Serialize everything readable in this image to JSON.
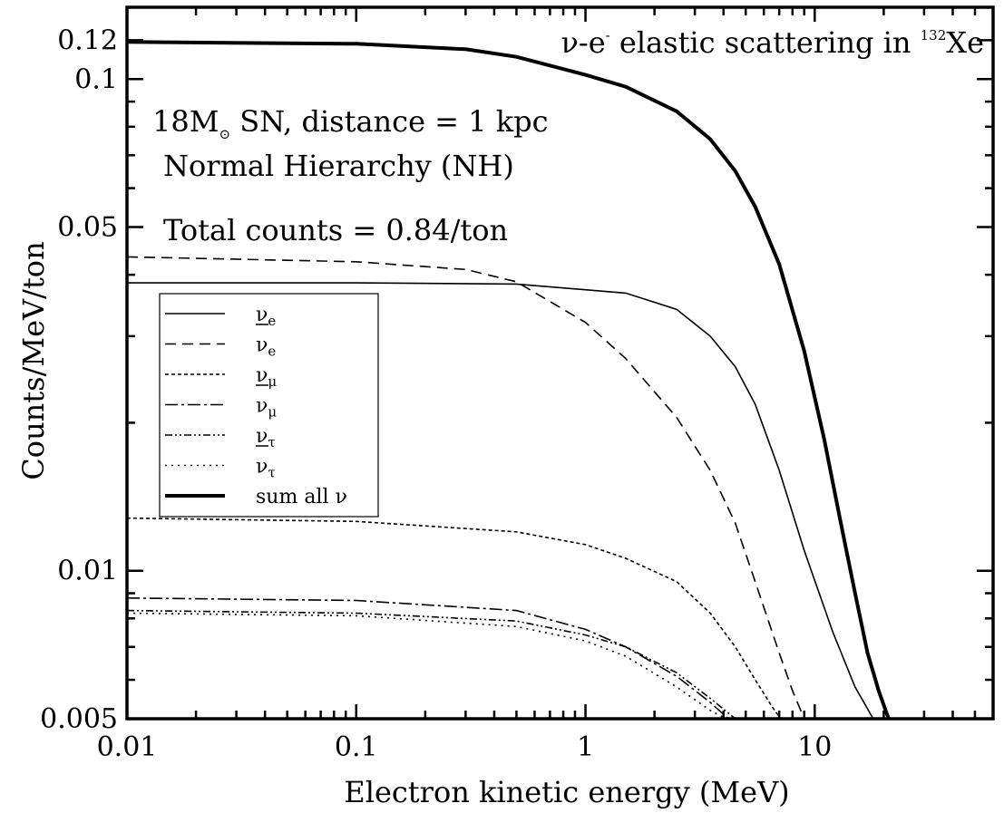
{
  "chart_data": {
    "type": "line",
    "title": "ν-e elastic scattering in Xe",
    "title_parts": {
      "main": "ν-e",
      "superscript_minus": "-",
      "mid": " elastic scattering in ",
      "isotope_mass": "132",
      "element": "Xe"
    },
    "annotations": {
      "line1_prefix": "18M",
      "line1_symbol": "⊙",
      "line1_suffix": " SN, distance = 1 kpc",
      "line2": "Normal Hierarchy (NH)",
      "line3": "Total counts = 0.84/ton"
    },
    "xlabel": "Electron kinetic energy (MeV)",
    "ylabel": "Counts/MeV/ton",
    "x_scale": "log",
    "y_scale": "log",
    "xlim": [
      0.01,
      60
    ],
    "ylim": [
      0.005,
      0.14
    ],
    "xtick_labels": [
      {
        "value": 0.01,
        "label": "0.01"
      },
      {
        "value": 0.1,
        "label": "0.1"
      },
      {
        "value": 1,
        "label": "1"
      },
      {
        "value": 10,
        "label": "10"
      }
    ],
    "ytick_labels": [
      {
        "value": 0.005,
        "label": "0.005"
      },
      {
        "value": 0.01,
        "label": "0.01"
      },
      {
        "value": 0.05,
        "label": "0.05"
      },
      {
        "value": 0.1,
        "label": "0.1"
      },
      {
        "value": 0.12,
        "label": "0.12"
      }
    ],
    "legend_position": "middle-left",
    "grid": false,
    "series": [
      {
        "name": "ν̄e",
        "symbol": "ν",
        "sub": "e",
        "bar": true,
        "dash": "",
        "width": 1.6,
        "x": [
          0.01,
          0.1,
          0.5,
          1.5,
          2.5,
          3.5,
          4.5,
          5.5,
          7,
          9,
          12,
          15,
          18
        ],
        "y": [
          0.0385,
          0.0385,
          0.0383,
          0.0367,
          0.034,
          0.03,
          0.026,
          0.0218,
          0.016,
          0.011,
          0.0075,
          0.0058,
          0.005
        ]
      },
      {
        "name": "νe",
        "symbol": "ν",
        "sub": "e",
        "bar": false,
        "dash": "12,7",
        "width": 1.6,
        "x": [
          0.01,
          0.1,
          0.3,
          0.5,
          1,
          1.5,
          2.5,
          3.5,
          4.5,
          5.5,
          7,
          8,
          9
        ],
        "y": [
          0.0435,
          0.0425,
          0.041,
          0.0387,
          0.032,
          0.027,
          0.0205,
          0.016,
          0.0125,
          0.0095,
          0.0068,
          0.0057,
          0.005
        ]
      },
      {
        "name": "ν̄μ",
        "symbol": "ν",
        "sub": "μ",
        "bar": true,
        "dash": "4,3",
        "width": 1.6,
        "x": [
          0.01,
          0.1,
          0.5,
          1,
          1.5,
          2.5,
          3.5,
          4.5,
          5.5,
          6.5,
          7.1
        ],
        "y": [
          0.0128,
          0.0126,
          0.012,
          0.0113,
          0.0106,
          0.0095,
          0.0082,
          0.007,
          0.006,
          0.0053,
          0.005
        ]
      },
      {
        "name": "νμ",
        "symbol": "ν",
        "sub": "μ",
        "bar": false,
        "dash": "14,4,3,4",
        "width": 1.6,
        "x": [
          0.01,
          0.1,
          0.5,
          1,
          1.5,
          2.5,
          3.5,
          4.2
        ],
        "y": [
          0.0088,
          0.0087,
          0.0083,
          0.0076,
          0.007,
          0.0061,
          0.0054,
          0.005
        ]
      },
      {
        "name": "ν̄τ",
        "symbol": "ν",
        "sub": "τ",
        "bar": true,
        "dash": "8,3,2,3,2,3",
        "width": 1.6,
        "x": [
          0.01,
          0.1,
          0.5,
          1,
          1.5,
          2.5,
          3.5,
          4.5
        ],
        "y": [
          0.0083,
          0.0082,
          0.0079,
          0.0074,
          0.007,
          0.0062,
          0.0055,
          0.005
        ]
      },
      {
        "name": "ντ",
        "symbol": "ν",
        "sub": "τ",
        "bar": false,
        "dash": "2,5",
        "width": 1.6,
        "x": [
          0.01,
          0.1,
          0.5,
          1,
          1.5,
          2.5,
          3.5,
          4.1
        ],
        "y": [
          0.0082,
          0.0081,
          0.0077,
          0.0072,
          0.0067,
          0.0058,
          0.0052,
          0.005
        ]
      },
      {
        "name": "sum all ν",
        "symbol": "",
        "sub": "",
        "bar": false,
        "dash": "",
        "width": 4,
        "x": [
          0.01,
          0.1,
          0.3,
          0.5,
          1,
          1.5,
          2.5,
          3.5,
          4.5,
          5.5,
          7,
          9,
          11,
          13,
          15,
          17,
          19,
          21
        ],
        "y": [
          0.119,
          0.118,
          0.115,
          0.111,
          0.102,
          0.0965,
          0.086,
          0.0755,
          0.065,
          0.055,
          0.042,
          0.028,
          0.0185,
          0.0125,
          0.009,
          0.0068,
          0.0057,
          0.005
        ]
      }
    ]
  }
}
